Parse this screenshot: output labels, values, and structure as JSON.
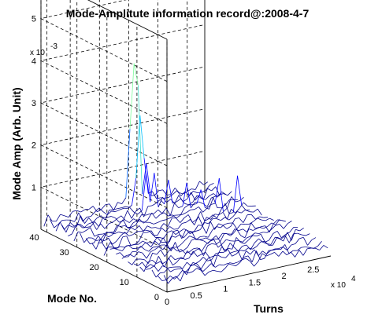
{
  "chart_data": {
    "type": "surface-3d",
    "title": "Mode-Amplitute information record@:2008-4-7",
    "xlabel": "Turns",
    "ylabel": "Mode No.",
    "zlabel": "Mode Amp  (Arb. Unit)",
    "x_multiplier_label": "x 10",
    "x_multiplier_exp": "4",
    "z_multiplier_label": "x 10",
    "z_multiplier_exp": "-3",
    "xlim": [
      0,
      28000
    ],
    "ylim": [
      0,
      42
    ],
    "zlim": [
      0,
      0.006
    ],
    "x_ticks": [
      {
        "value": 0,
        "label": "0"
      },
      {
        "value": 5000,
        "label": "0.5"
      },
      {
        "value": 10000,
        "label": "1"
      },
      {
        "value": 15000,
        "label": "1.5"
      },
      {
        "value": 20000,
        "label": "2"
      },
      {
        "value": 25000,
        "label": "2.5"
      }
    ],
    "y_ticks": [
      {
        "value": 0,
        "label": "0"
      },
      {
        "value": 10,
        "label": "10"
      },
      {
        "value": 20,
        "label": "20"
      },
      {
        "value": 30,
        "label": "30"
      },
      {
        "value": 40,
        "label": "40"
      }
    ],
    "z_ticks": [
      {
        "value": 0.001,
        "label": "1"
      },
      {
        "value": 0.002,
        "label": "2"
      },
      {
        "value": 0.003,
        "label": "3"
      },
      {
        "value": 0.004,
        "label": "4"
      },
      {
        "value": 0.005,
        "label": "5"
      }
    ],
    "grid": true,
    "colormap": [
      "#00008b",
      "#0000ff",
      "#0064ff",
      "#00bfff",
      "#3cdcc8",
      "#7cfc9c",
      "#d4ff7a"
    ],
    "surface": {
      "x_step": 700,
      "modes": [
        1,
        3,
        5,
        7,
        9,
        11,
        13,
        15,
        17,
        19,
        21,
        23,
        25,
        27,
        29,
        31,
        33,
        35,
        37,
        39,
        41
      ],
      "baseline_amplitude": 0.0003,
      "peaks": [
        {
          "mode": 41,
          "turns": 15000,
          "amplitude": 0.0059
        },
        {
          "mode": 41,
          "turns": 15500,
          "amplitude": 0.0045
        },
        {
          "mode": 41,
          "turns": 16200,
          "amplitude": 0.0038
        },
        {
          "mode": 41,
          "turns": 17200,
          "amplitude": 0.0032
        },
        {
          "mode": 39,
          "turns": 15200,
          "amplitude": 0.0042
        },
        {
          "mode": 37,
          "turns": 16500,
          "amplitude": 0.003
        },
        {
          "mode": 35,
          "turns": 18500,
          "amplitude": 0.0026
        },
        {
          "mode": 33,
          "turns": 20000,
          "amplitude": 0.0024
        },
        {
          "mode": 31,
          "turns": 22000,
          "amplitude": 0.002
        },
        {
          "mode": 29,
          "turns": 24000,
          "amplitude": 0.0017
        },
        {
          "mode": 27,
          "turns": 26000,
          "amplitude": 0.0013
        }
      ]
    }
  }
}
